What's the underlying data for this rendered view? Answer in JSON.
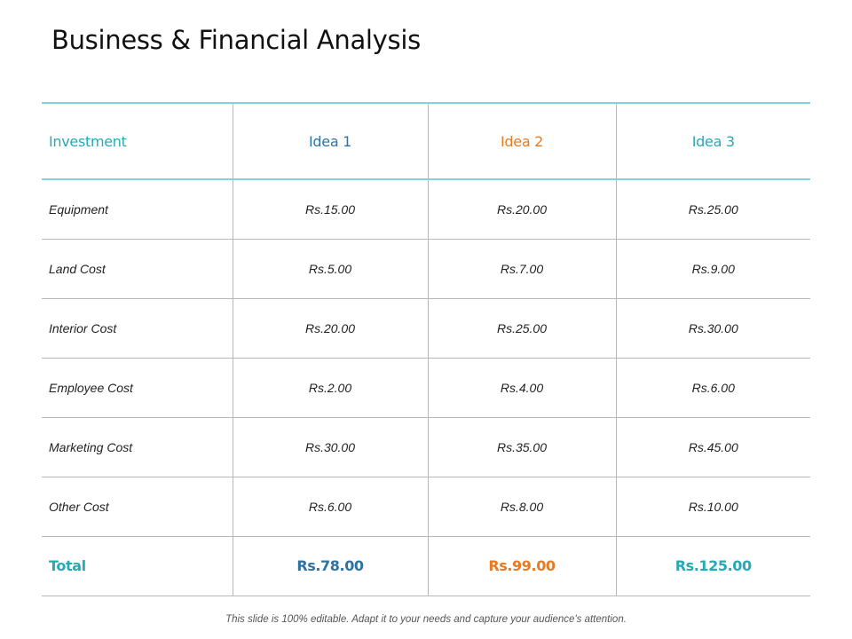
{
  "title": "Business & Financial Analysis",
  "colors": {
    "teal": "#27a9b6",
    "blue": "#2f73a3",
    "orange": "#e87a22",
    "header_rule": "#7fd3da",
    "grid": "#b8b8b8"
  },
  "table": {
    "headers": [
      "Investment",
      "Idea 1",
      "Idea 2",
      "Idea 3"
    ],
    "rows": [
      {
        "label": "Equipment",
        "values": [
          "Rs.15.00",
          "Rs.20.00",
          "Rs.25.00"
        ]
      },
      {
        "label": "Land Cost",
        "values": [
          "Rs.5.00",
          "Rs.7.00",
          "Rs.9.00"
        ]
      },
      {
        "label": "Interior Cost",
        "values": [
          "Rs.20.00",
          "Rs.25.00",
          "Rs.30.00"
        ]
      },
      {
        "label": "Employee Cost",
        "values": [
          "Rs.2.00",
          "Rs.4.00",
          "Rs.6.00"
        ]
      },
      {
        "label": "Marketing Cost",
        "values": [
          "Rs.30.00",
          "Rs.35.00",
          "Rs.45.00"
        ]
      },
      {
        "label": "Other Cost",
        "values": [
          "Rs.6.00",
          "Rs.8.00",
          "Rs.10.00"
        ]
      }
    ],
    "total": {
      "label": "Total",
      "values": [
        "Rs.78.00",
        "Rs.99.00",
        "Rs.125.00"
      ]
    }
  },
  "footer": "This slide is 100% editable. Adapt it to your needs and capture your audience's attention."
}
